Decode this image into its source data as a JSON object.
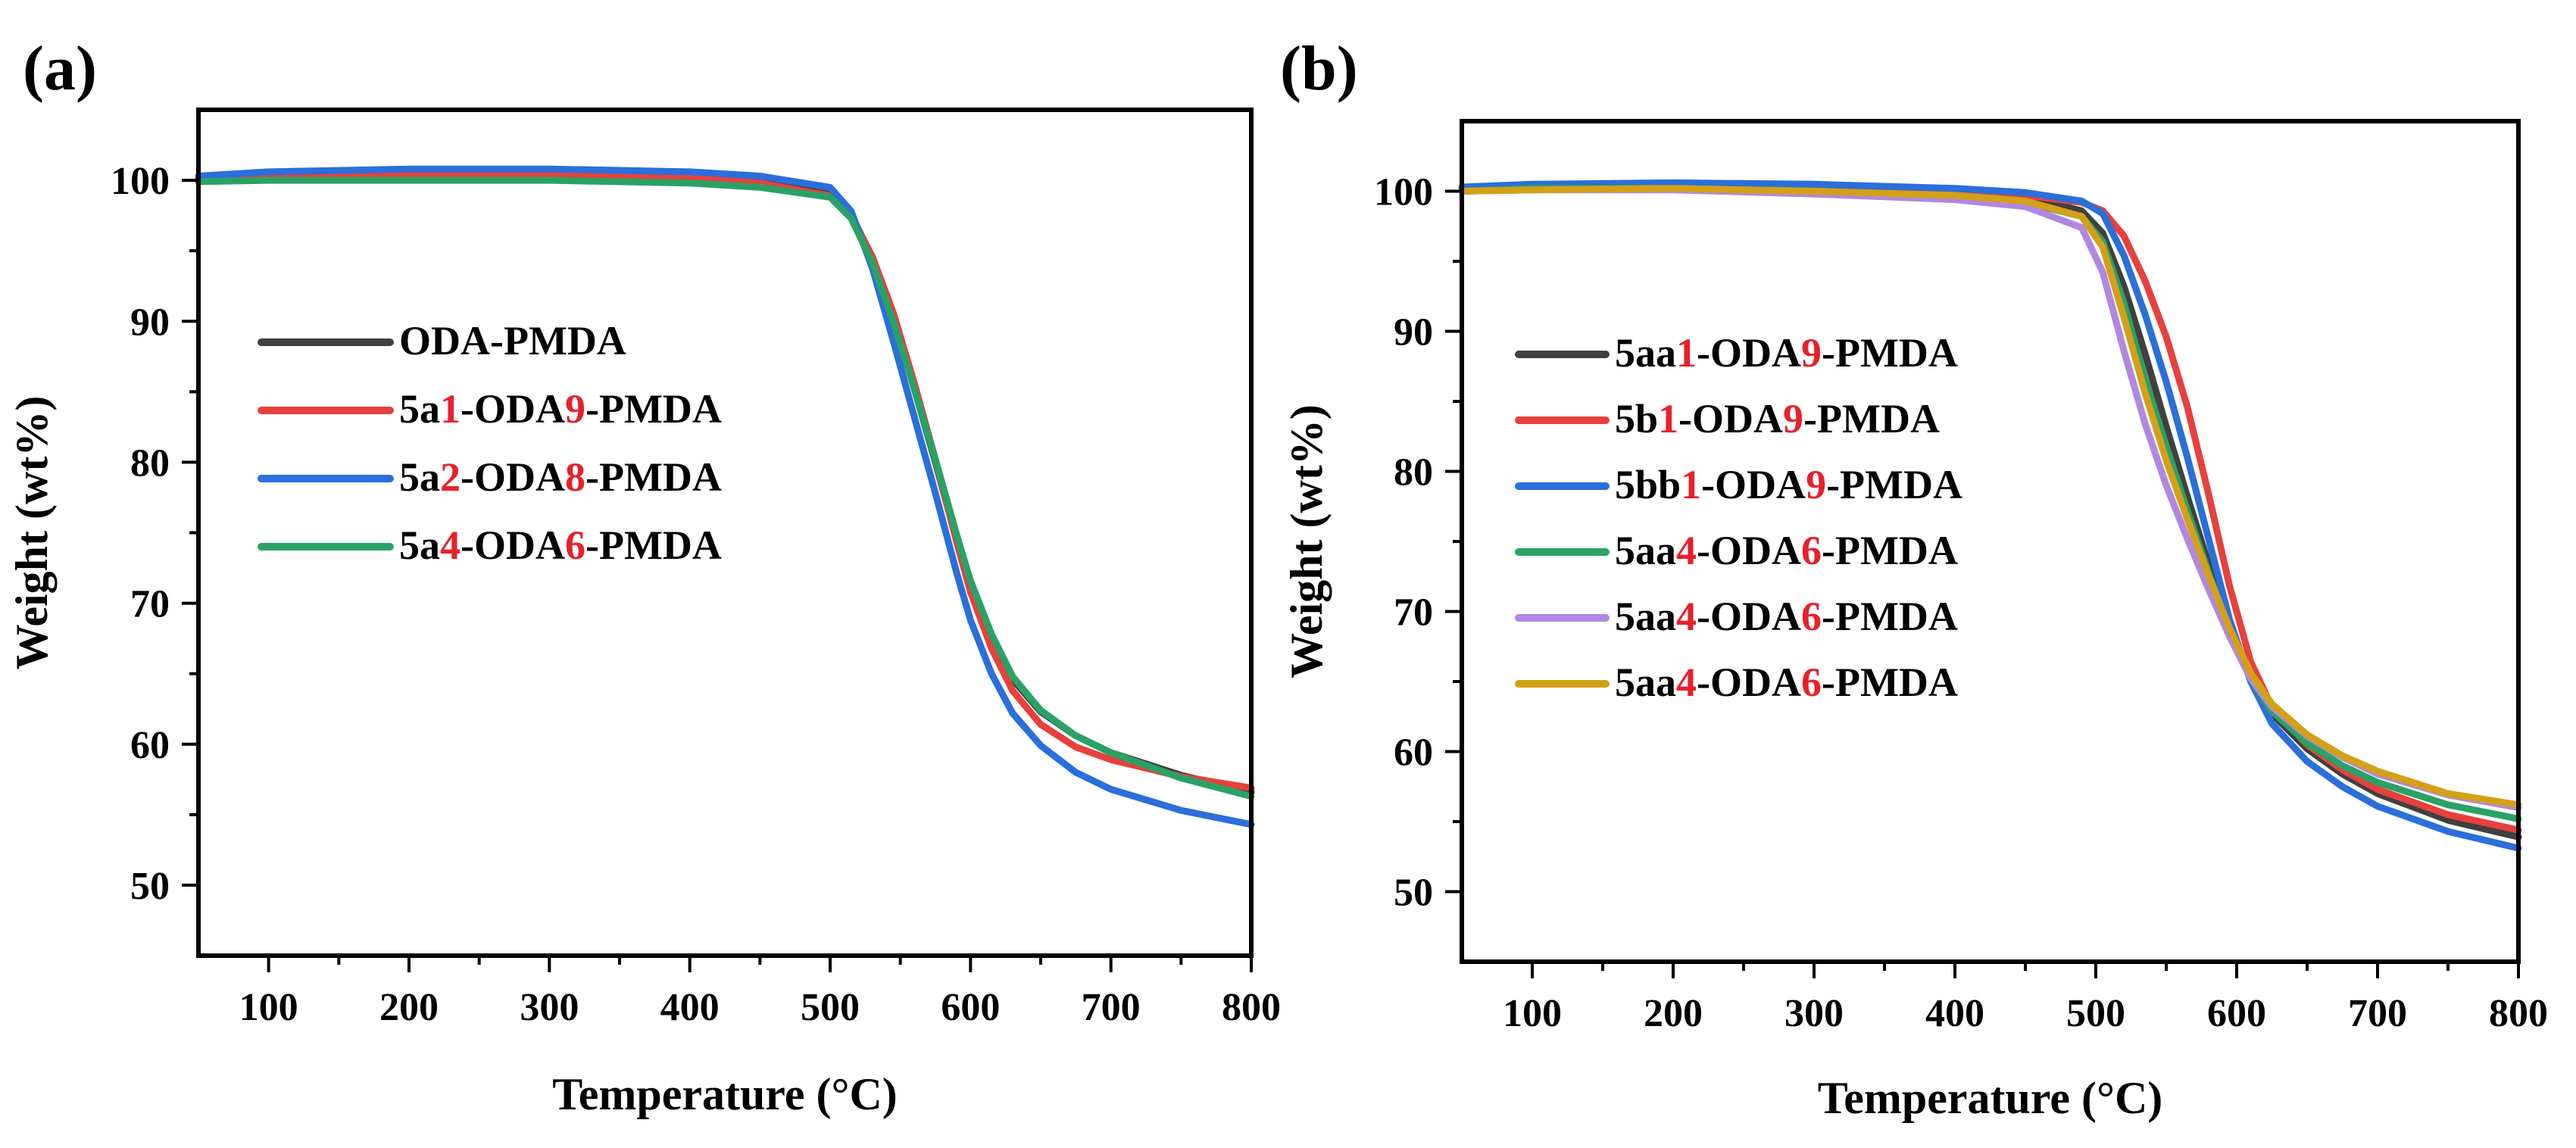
{
  "colors": {
    "dark_gray": "#404040",
    "red": "#e8403c",
    "blue": "#2a6fdb",
    "green": "#2aa266",
    "lavender": "#b088e0",
    "gold": "#d4a017",
    "highlight": "#e8202a",
    "text": "#000000"
  },
  "chart_data": [
    {
      "type": "line",
      "panel_label": "(a)",
      "title": "",
      "xlabel": "Temperature (°C)",
      "ylabel": "Weight (wt%)",
      "xlim": [
        50,
        800
      ],
      "ylim": [
        45,
        105
      ],
      "xticks": [
        100,
        200,
        300,
        400,
        500,
        600,
        700,
        800
      ],
      "yticks": [
        50,
        60,
        70,
        80,
        90,
        100
      ],
      "legend_position": "center-left",
      "series": [
        {
          "name": "ODA-PMDA",
          "color_key": "dark_gray",
          "label_parts": [
            {
              "t": "ODA-PMDA",
              "hl": false
            }
          ],
          "x": [
            50,
            100,
            200,
            300,
            400,
            450,
            500,
            515,
            530,
            545,
            560,
            575,
            590,
            600,
            615,
            630,
            650,
            675,
            700,
            750,
            800
          ],
          "y": [
            100.2,
            100.4,
            100.5,
            100.5,
            100.3,
            99.9,
            99.0,
            97.6,
            94.5,
            90.2,
            85.2,
            80.0,
            74.5,
            71.2,
            67.5,
            64.6,
            62.3,
            60.6,
            59.4,
            57.8,
            56.6
          ]
        },
        {
          "name": "5a1-ODA9-PMDA",
          "color_key": "red",
          "label_parts": [
            {
              "t": "5a",
              "hl": false
            },
            {
              "t": "1",
              "hl": true
            },
            {
              "t": "-ODA",
              "hl": false
            },
            {
              "t": "9",
              "hl": true
            },
            {
              "t": "-PMDA",
              "hl": false
            }
          ],
          "x": [
            50,
            100,
            200,
            300,
            400,
            450,
            500,
            515,
            530,
            545,
            560,
            575,
            590,
            600,
            615,
            630,
            650,
            675,
            700,
            750,
            800
          ],
          "y": [
            100.1,
            100.3,
            100.4,
            100.4,
            100.2,
            99.8,
            98.9,
            97.5,
            94.6,
            90.6,
            85.6,
            80.2,
            74.4,
            70.8,
            66.8,
            63.8,
            61.4,
            59.8,
            58.9,
            57.7,
            56.9
          ]
        },
        {
          "name": "5a2-ODA8-PMDA",
          "color_key": "blue",
          "label_parts": [
            {
              "t": "5a",
              "hl": false
            },
            {
              "t": "2",
              "hl": true
            },
            {
              "t": "-ODA",
              "hl": false
            },
            {
              "t": "8",
              "hl": true
            },
            {
              "t": "-PMDA",
              "hl": false
            }
          ],
          "x": [
            50,
            100,
            200,
            300,
            400,
            450,
            500,
            515,
            530,
            545,
            560,
            575,
            590,
            600,
            615,
            630,
            650,
            675,
            700,
            750,
            800
          ],
          "y": [
            100.3,
            100.6,
            100.8,
            100.8,
            100.6,
            100.3,
            99.5,
            97.8,
            93.8,
            88.6,
            83.2,
            77.8,
            72.2,
            68.8,
            65.0,
            62.2,
            59.9,
            58.0,
            56.8,
            55.3,
            54.3
          ]
        },
        {
          "name": "5a4-ODA6-PMDA",
          "color_key": "green",
          "label_parts": [
            {
              "t": "5a",
              "hl": false
            },
            {
              "t": "4",
              "hl": true
            },
            {
              "t": "-ODA",
              "hl": false
            },
            {
              "t": "6",
              "hl": true
            },
            {
              "t": "-PMDA",
              "hl": false
            }
          ],
          "x": [
            50,
            100,
            200,
            300,
            400,
            450,
            500,
            515,
            530,
            545,
            560,
            575,
            590,
            600,
            615,
            630,
            650,
            675,
            700,
            750,
            800
          ],
          "y": [
            99.9,
            100.0,
            100.0,
            100.0,
            99.8,
            99.5,
            98.8,
            97.3,
            94.2,
            90.0,
            85.2,
            80.2,
            74.9,
            71.6,
            67.8,
            64.8,
            62.4,
            60.6,
            59.4,
            57.6,
            56.3
          ]
        }
      ]
    },
    {
      "type": "line",
      "panel_label": "(b)",
      "title": "",
      "xlabel": "Temperature (°C)",
      "ylabel": "Weight (wt%)",
      "xlim": [
        50,
        800
      ],
      "ylim": [
        45,
        105
      ],
      "xticks": [
        100,
        200,
        300,
        400,
        500,
        600,
        700,
        800
      ],
      "yticks": [
        50,
        60,
        70,
        80,
        90,
        100
      ],
      "legend_position": "center-left",
      "series": [
        {
          "name": "5aa1-ODA9-PMDA",
          "color_key": "dark_gray",
          "label_parts": [
            {
              "t": "5aa",
              "hl": false
            },
            {
              "t": "1",
              "hl": true
            },
            {
              "t": "-ODA",
              "hl": false
            },
            {
              "t": "9",
              "hl": true
            },
            {
              "t": "-PMDA",
              "hl": false
            }
          ],
          "x": [
            50,
            100,
            200,
            300,
            400,
            450,
            490,
            505,
            520,
            535,
            550,
            565,
            580,
            595,
            610,
            625,
            650,
            675,
            700,
            750,
            800
          ],
          "y": [
            100.2,
            100.4,
            100.5,
            100.3,
            100.0,
            99.6,
            98.6,
            97.0,
            93.2,
            88.4,
            83.2,
            78.2,
            73.4,
            69.0,
            65.2,
            62.7,
            60.2,
            58.4,
            57.0,
            55.1,
            53.9
          ]
        },
        {
          "name": "5b1-ODA9-PMDA",
          "color_key": "red",
          "label_parts": [
            {
              "t": "5b",
              "hl": false
            },
            {
              "t": "1",
              "hl": true
            },
            {
              "t": "-ODA",
              "hl": false
            },
            {
              "t": "9",
              "hl": true
            },
            {
              "t": "-PMDA",
              "hl": false
            }
          ],
          "x": [
            50,
            100,
            200,
            300,
            400,
            450,
            490,
            505,
            520,
            535,
            550,
            565,
            580,
            595,
            610,
            625,
            650,
            675,
            700,
            750,
            800
          ],
          "y": [
            100.1,
            100.3,
            100.4,
            100.3,
            100.0,
            99.7,
            99.2,
            98.6,
            96.8,
            93.6,
            89.6,
            84.6,
            78.4,
            71.8,
            66.4,
            63.2,
            60.5,
            58.7,
            57.3,
            55.5,
            54.4
          ]
        },
        {
          "name": "5bb1-ODA9-PMDA",
          "color_key": "blue",
          "label_parts": [
            {
              "t": "5bb",
              "hl": false
            },
            {
              "t": "1",
              "hl": true
            },
            {
              "t": "-ODA",
              "hl": false
            },
            {
              "t": "9",
              "hl": true
            },
            {
              "t": "-PMDA",
              "hl": false
            }
          ],
          "x": [
            50,
            100,
            200,
            300,
            400,
            450,
            490,
            505,
            520,
            535,
            550,
            565,
            580,
            595,
            610,
            625,
            650,
            675,
            700,
            750,
            800
          ],
          "y": [
            100.3,
            100.5,
            100.6,
            100.5,
            100.2,
            99.9,
            99.3,
            98.4,
            95.4,
            91.2,
            86.4,
            81.0,
            75.2,
            69.4,
            65.0,
            62.0,
            59.3,
            57.5,
            56.1,
            54.3,
            53.1
          ]
        },
        {
          "name": "5aa4-ODA6-PMDA",
          "color_key": "green",
          "label_parts": [
            {
              "t": "5aa",
              "hl": false
            },
            {
              "t": "4",
              "hl": true
            },
            {
              "t": "-ODA",
              "hl": false
            },
            {
              "t": "6",
              "hl": true
            },
            {
              "t": "-PMDA",
              "hl": false
            }
          ],
          "x": [
            50,
            100,
            200,
            300,
            400,
            450,
            490,
            505,
            520,
            535,
            550,
            565,
            580,
            595,
            610,
            625,
            650,
            675,
            700,
            750,
            800
          ],
          "y": [
            100.0,
            100.2,
            100.2,
            100.0,
            99.6,
            99.2,
            98.2,
            96.4,
            92.0,
            86.6,
            81.8,
            77.2,
            72.8,
            68.6,
            65.2,
            62.9,
            60.6,
            59.0,
            57.8,
            56.2,
            55.2
          ]
        },
        {
          "name": "5aa4-ODA6-PMDA",
          "color_key": "lavender",
          "label_parts": [
            {
              "t": "5aa",
              "hl": false
            },
            {
              "t": "4",
              "hl": true
            },
            {
              "t": "-ODA",
              "hl": false
            },
            {
              "t": "6",
              "hl": true
            },
            {
              "t": "-PMDA",
              "hl": false
            }
          ],
          "x": [
            50,
            100,
            200,
            300,
            400,
            450,
            490,
            505,
            520,
            535,
            550,
            565,
            580,
            595,
            610,
            625,
            650,
            675,
            700,
            750,
            800
          ],
          "y": [
            100.0,
            100.1,
            100.1,
            99.8,
            99.4,
            98.9,
            97.4,
            94.2,
            88.6,
            83.4,
            79.0,
            75.2,
            71.6,
            68.2,
            65.2,
            63.2,
            61.1,
            59.6,
            58.4,
            56.9,
            56.0
          ]
        },
        {
          "name": "5aa4-ODA6-PMDA",
          "color_key": "gold",
          "label_parts": [
            {
              "t": "5aa",
              "hl": false
            },
            {
              "t": "4",
              "hl": true
            },
            {
              "t": "-ODA",
              "hl": false
            },
            {
              "t": "6",
              "hl": true
            },
            {
              "t": "-PMDA",
              "hl": false
            }
          ],
          "x": [
            50,
            100,
            200,
            300,
            400,
            450,
            490,
            505,
            520,
            535,
            550,
            565,
            580,
            595,
            610,
            625,
            650,
            675,
            700,
            750,
            800
          ],
          "y": [
            100.0,
            100.1,
            100.2,
            100.0,
            99.7,
            99.3,
            98.2,
            96.0,
            91.0,
            85.6,
            80.8,
            76.6,
            72.6,
            68.8,
            65.6,
            63.4,
            61.2,
            59.7,
            58.6,
            57.0,
            56.2
          ]
        }
      ]
    }
  ]
}
